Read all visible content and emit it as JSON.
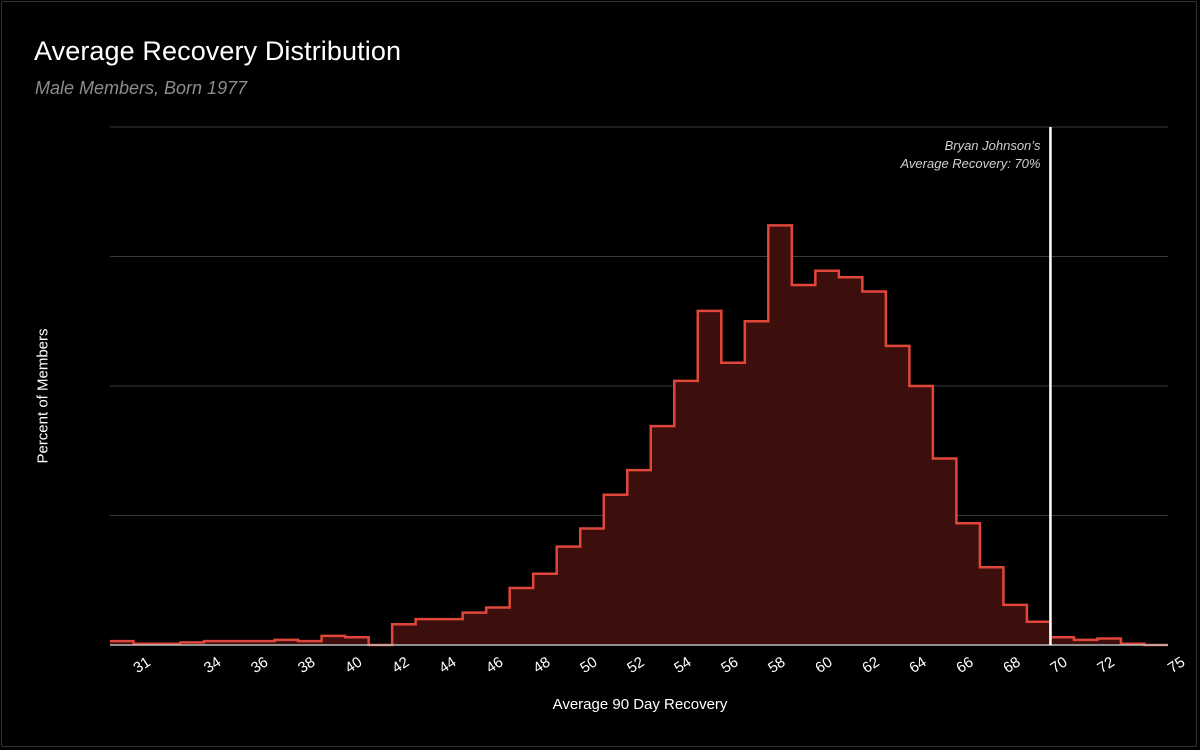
{
  "title": "Average Recovery Distribution",
  "subtitle": "Male Members, Born 1977",
  "colors": {
    "background": "#000000",
    "line": "#e0463a",
    "fill": "#3d0f0c",
    "grid": "#3a3a3a",
    "marker": "#ffffff"
  },
  "chart_data": {
    "type": "area",
    "title": "Average Recovery Distribution",
    "subtitle": "Male Members, Born 1977",
    "xlabel": "Average 90 Day Recovery",
    "ylabel": "Percent of Members",
    "x_ticks": [
      31,
      34,
      36,
      38,
      40,
      42,
      44,
      46,
      48,
      50,
      52,
      54,
      56,
      58,
      60,
      62,
      64,
      66,
      68,
      70,
      72,
      75
    ],
    "xlim": [
      30,
      75
    ],
    "ylim": [
      0,
      4
    ],
    "grid": true,
    "y_tick_labels_shown": false,
    "series": [
      {
        "x": [
          30,
          31,
          32,
          33,
          34,
          35,
          36,
          37,
          38,
          39,
          40,
          41,
          42,
          43,
          44,
          45,
          46,
          47,
          48,
          49,
          50,
          51,
          52,
          53,
          54,
          55,
          56,
          57,
          58,
          59,
          60,
          61,
          62,
          63,
          64,
          65,
          66,
          67,
          68,
          69,
          70,
          71,
          72,
          73,
          74
        ],
        "values": [
          0.03,
          0.01,
          0.01,
          0.02,
          0.03,
          0.03,
          0.03,
          0.04,
          0.03,
          0.07,
          0.06,
          0.0,
          0.16,
          0.2,
          0.2,
          0.25,
          0.29,
          0.44,
          0.55,
          0.76,
          0.9,
          1.16,
          1.35,
          1.69,
          2.04,
          2.58,
          2.18,
          2.5,
          3.24,
          2.78,
          2.89,
          2.84,
          2.73,
          2.31,
          2.0,
          1.44,
          0.94,
          0.6,
          0.31,
          0.18,
          0.06,
          0.04,
          0.05,
          0.01,
          0.0
        ]
      }
    ],
    "annotations": [
      {
        "x": 70,
        "text_line1": "Bryan Johnson’s",
        "text_line2": "Average Recovery: 70%"
      }
    ]
  }
}
